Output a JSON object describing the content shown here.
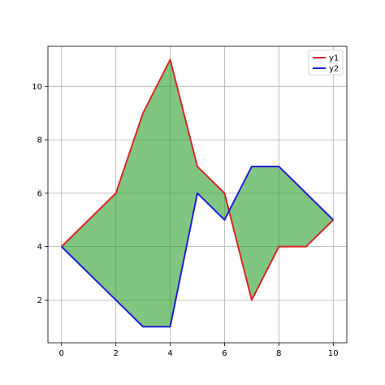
{
  "chart_data": {
    "type": "line",
    "title": "",
    "xlabel": "",
    "ylabel": "",
    "x": [
      0,
      1,
      2,
      3,
      4,
      5,
      6,
      7,
      8,
      9,
      10
    ],
    "series": [
      {
        "name": "y1",
        "values": [
          4,
          5,
          6,
          9,
          11,
          7,
          6,
          2,
          4,
          4,
          5
        ],
        "color": "#d62728"
      },
      {
        "name": "y2",
        "values": [
          4,
          3,
          2,
          1,
          1,
          6,
          5,
          7,
          7,
          6,
          5
        ],
        "color": "#1f1fd6"
      }
    ],
    "fill_between": {
      "series": [
        "y1",
        "y2"
      ],
      "color": "#2ca02c",
      "alpha": 0.6
    },
    "xlim": [
      -0.5,
      10.5
    ],
    "ylim": [
      0.4,
      11.5
    ],
    "xticks": [
      0,
      2,
      4,
      6,
      8,
      10
    ],
    "yticks": [
      2,
      4,
      6,
      8,
      10
    ],
    "xtick_labels": [
      "0",
      "2",
      "4",
      "6",
      "8",
      "10"
    ],
    "ytick_labels": [
      "2",
      "4",
      "6",
      "8",
      "10"
    ],
    "grid": true,
    "legend_position": "top-right"
  }
}
